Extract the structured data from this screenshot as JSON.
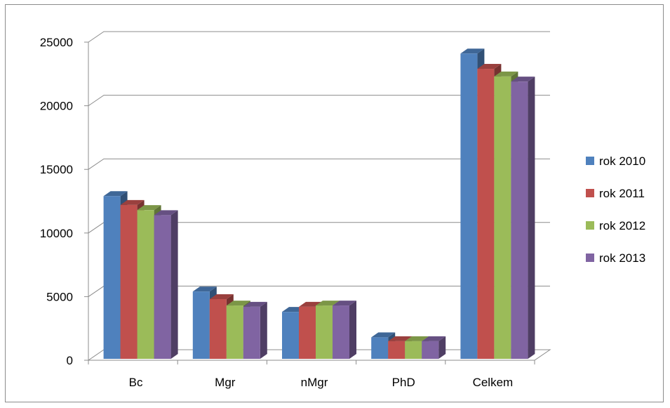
{
  "chart_data": {
    "type": "bar",
    "categories": [
      "Bc",
      "Mgr",
      "nMgr",
      "PhD",
      "Celkem"
    ],
    "series": [
      {
        "name": "rok 2010",
        "values": [
          12900,
          5400,
          3800,
          1800,
          24100
        ]
      },
      {
        "name": "rok 2011",
        "values": [
          12200,
          4800,
          4200,
          1500,
          22900
        ]
      },
      {
        "name": "rok 2012",
        "values": [
          11800,
          4300,
          4300,
          1500,
          22300
        ]
      },
      {
        "name": "rok 2013",
        "values": [
          11400,
          4200,
          4300,
          1500,
          21900
        ]
      }
    ],
    "yticks": [
      "0",
      "5000",
      "10000",
      "15000",
      "20000",
      "25000"
    ],
    "ylim": [
      0,
      25000
    ],
    "grid": true,
    "legend_position": "right",
    "colors": {
      "rok 2010": "#4f81bd",
      "rok 2011": "#c0504d",
      "rok 2012": "#9bbb59",
      "rok 2013": "#8064a2"
    }
  }
}
